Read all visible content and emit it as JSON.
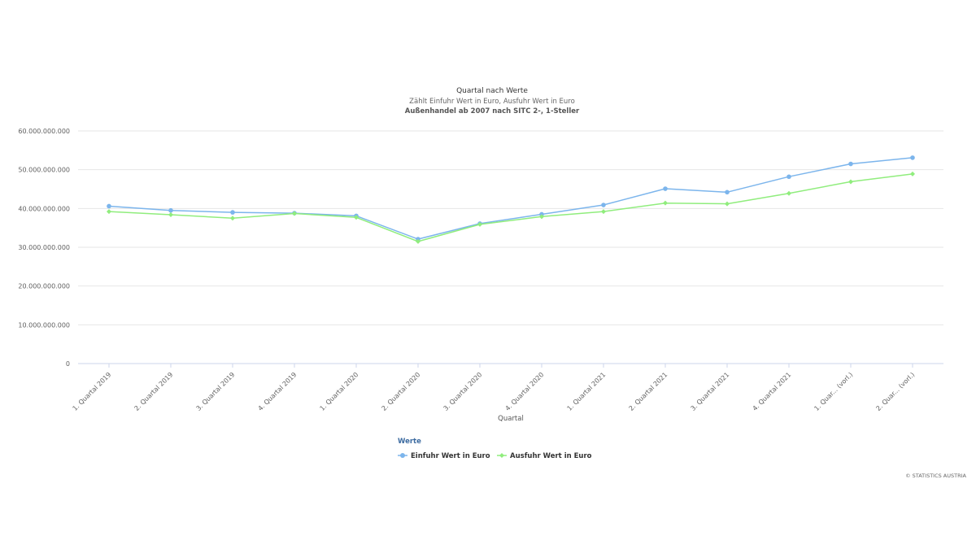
{
  "chart_data": {
    "type": "line",
    "title": "Quartal nach Werte",
    "subtitle": "Zählt Einfuhr Wert in Euro, Ausfuhr Wert in Euro",
    "subtitle2": "Außenhandel ab 2007 nach SITC 2-, 1-Steller",
    "xlabel": "Quartal",
    "ylabel": "",
    "ylim": [
      0,
      60000000000
    ],
    "yticks": [
      "0",
      "10.000.000.000",
      "20.000.000.000",
      "30.000.000.000",
      "40.000.000.000",
      "50.000.000.000",
      "60.000.000.000"
    ],
    "categories": [
      "1. Quartal 2019",
      "2. Quartal 2019",
      "3. Quartal 2019",
      "4. Quartal 2019",
      "1. Quartal 2020",
      "2. Quartal 2020",
      "3. Quartal 2020",
      "4. Quartal 2020",
      "1. Quartal 2021",
      "2. Quartal 2021",
      "3. Quartal 2021",
      "4. Quartal 2021",
      "1. Quar... (vorl.)",
      "2. Quar... (vorl.)"
    ],
    "legend_title": "Werte",
    "legend_position": "bottom-center",
    "grid": true,
    "series": [
      {
        "name": "Einfuhr Wert in Euro",
        "color": "#7cb5ec",
        "values": [
          40600000000,
          39500000000,
          39000000000,
          38800000000,
          38100000000,
          32100000000,
          36100000000,
          38500000000,
          40900000000,
          45100000000,
          44200000000,
          48200000000,
          51500000000,
          53100000000
        ]
      },
      {
        "name": "Ausfuhr Wert in Euro",
        "color": "#90ed7d",
        "values": [
          39200000000,
          38400000000,
          37500000000,
          38700000000,
          37700000000,
          31500000000,
          35900000000,
          37900000000,
          39200000000,
          41400000000,
          41200000000,
          43900000000,
          46900000000,
          48900000000
        ]
      }
    ]
  },
  "credits": "© STATISTICS AUSTRIA"
}
